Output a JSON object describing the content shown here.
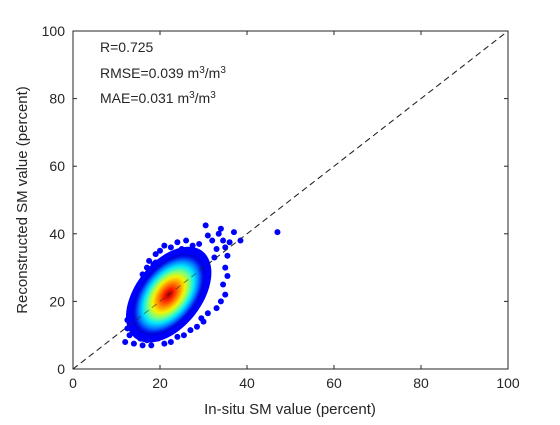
{
  "chart_data": {
    "type": "scatter",
    "xlabel": "In-situ SM value (percent)",
    "ylabel": "Reconstructed SM value (percent)",
    "xlim": [
      0,
      100
    ],
    "ylim": [
      0,
      100
    ],
    "xticks": [
      0,
      20,
      40,
      60,
      80,
      100
    ],
    "yticks": [
      0,
      20,
      40,
      60,
      80,
      100
    ],
    "grid": false,
    "reference_line": {
      "type": "1:1",
      "style": "dashed",
      "from": [
        0,
        0
      ],
      "to": [
        100,
        100
      ]
    },
    "annotations": {
      "r": "R=0.725",
      "rmse_prefix": "RMSE=0.039 m",
      "mae_prefix": "MAE=0.031 m",
      "exp": "3",
      "unit_sep": "/m"
    },
    "density_colormap": [
      "#00008f",
      "#0000ff",
      "#0080ff",
      "#00ffff",
      "#80ff80",
      "#ffff00",
      "#ff8000",
      "#ff0000",
      "#800000"
    ],
    "density_center": [
      22,
      22
    ],
    "points": [
      [
        12.0,
        8.0
      ],
      [
        13.0,
        10.0
      ],
      [
        14.0,
        7.5
      ],
      [
        15.5,
        9.0
      ],
      [
        16.0,
        7.0
      ],
      [
        17.0,
        8.5
      ],
      [
        18.0,
        7.0
      ],
      [
        19.5,
        9.0
      ],
      [
        12.5,
        12.0
      ],
      [
        12.5,
        14.5
      ],
      [
        13.0,
        17.0
      ],
      [
        14.0,
        19.5
      ],
      [
        14.5,
        22.5
      ],
      [
        15.5,
        25.5
      ],
      [
        16.0,
        28.0
      ],
      [
        17.0,
        30.0
      ],
      [
        17.5,
        32.0
      ],
      [
        18.5,
        31.0
      ],
      [
        19.0,
        34.0
      ],
      [
        20.0,
        35.0
      ],
      [
        21.0,
        36.5
      ],
      [
        22.5,
        36.0
      ],
      [
        24.0,
        37.5
      ],
      [
        25.0,
        35.5
      ],
      [
        26.0,
        38.0
      ],
      [
        27.5,
        36.5
      ],
      [
        29.0,
        37.0
      ],
      [
        30.5,
        42.5
      ],
      [
        31.0,
        39.5
      ],
      [
        32.0,
        38.0
      ],
      [
        33.5,
        40.0
      ],
      [
        34.0,
        41.5
      ],
      [
        34.5,
        38.0
      ],
      [
        35.0,
        36.0
      ],
      [
        35.5,
        33.5
      ],
      [
        35.0,
        30.0
      ],
      [
        35.5,
        27.5
      ],
      [
        34.5,
        25.0
      ],
      [
        35.0,
        22.0
      ],
      [
        34.0,
        20.0
      ],
      [
        33.0,
        18.0
      ],
      [
        31.0,
        16.5
      ],
      [
        30.0,
        14.0
      ],
      [
        28.5,
        12.5
      ],
      [
        27.0,
        11.5
      ],
      [
        25.5,
        10.0
      ],
      [
        24.0,
        9.5
      ],
      [
        22.5,
        8.0
      ],
      [
        21.0,
        7.5
      ],
      [
        37.0,
        40.5
      ],
      [
        38.5,
        38.0
      ],
      [
        36.0,
        37.5
      ],
      [
        47.0,
        40.5
      ],
      [
        16.5,
        26.0
      ],
      [
        19.0,
        31.5
      ],
      [
        33.0,
        35.5
      ],
      [
        32.5,
        33.0
      ],
      [
        13.5,
        15.5
      ],
      [
        20.5,
        11.0
      ],
      [
        29.5,
        15.0
      ]
    ]
  }
}
